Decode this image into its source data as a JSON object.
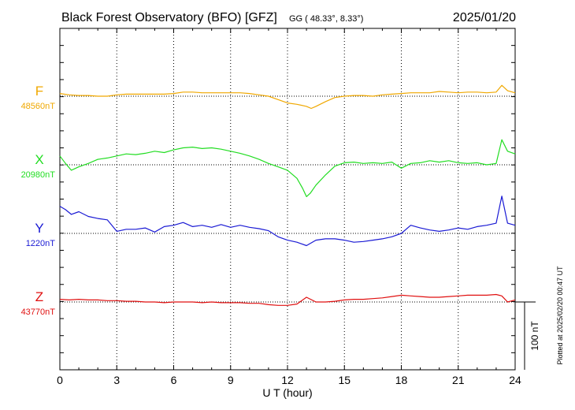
{
  "header": {
    "title": "Black Forest Observatory (BFO)  [GFZ]",
    "coords": "GG ( 48.33°,   8.33°)",
    "date": "2025/01/20"
  },
  "footer": {
    "plotted_at": "Plotted at 2025/02/20 00:47 UT"
  },
  "chart_data": {
    "type": "line",
    "xlabel": "U T (hour)",
    "xlim": [
      0,
      24
    ],
    "x_ticks": [
      "0",
      "3",
      "6",
      "9",
      "12",
      "15",
      "18",
      "21",
      "24"
    ],
    "grid": true,
    "scale_bar": {
      "label": "100 nT",
      "nT": 100
    },
    "series": [
      {
        "name": "F",
        "baseline_label": "48560nT",
        "baseline_nT": 48560,
        "color": "#f0a800",
        "x": [
          0,
          0.5,
          1,
          1.5,
          2,
          2.5,
          3,
          3.5,
          4,
          4.5,
          5,
          5.5,
          6,
          6.5,
          7,
          7.5,
          8,
          8.5,
          9,
          9.5,
          10,
          10.5,
          11,
          11.5,
          12,
          12.5,
          13,
          13.25,
          13.5,
          14,
          14.5,
          15,
          15.5,
          16,
          16.5,
          17,
          17.5,
          18,
          18.5,
          19,
          19.5,
          20,
          20.5,
          21,
          21.5,
          22,
          22.5,
          23,
          23.3,
          23.6,
          24
        ],
        "y": [
          4,
          2,
          1,
          1,
          0,
          0,
          2,
          3,
          3,
          3,
          3,
          3,
          4,
          6,
          6,
          5,
          5,
          5,
          5,
          5,
          4,
          2,
          0,
          -5,
          -10,
          -12,
          -15,
          -18,
          -15,
          -8,
          -2,
          0,
          1,
          1,
          0,
          2,
          3,
          4,
          5,
          5,
          5,
          7,
          6,
          5,
          6,
          6,
          5,
          6,
          16,
          8,
          5
        ]
      },
      {
        "name": "X",
        "baseline_label": "20980nT",
        "baseline_nT": 20980,
        "color": "#22dd22",
        "x": [
          0,
          0.3,
          0.6,
          1,
          1.5,
          2,
          2.5,
          3,
          3.5,
          4,
          4.5,
          5,
          5.5,
          6,
          6.5,
          7,
          7.5,
          8,
          8.5,
          9,
          9.5,
          10,
          10.5,
          11,
          11.5,
          12,
          12.5,
          12.8,
          13,
          13.2,
          13.5,
          14,
          14.5,
          15,
          15.5,
          16,
          16.5,
          17,
          17.5,
          18,
          18.5,
          19,
          19.5,
          20,
          20.5,
          21,
          21.5,
          22,
          22.5,
          23,
          23.3,
          23.6,
          24
        ],
        "y": [
          13,
          2,
          -8,
          -3,
          2,
          8,
          10,
          13,
          16,
          15,
          17,
          20,
          18,
          22,
          25,
          26,
          24,
          25,
          23,
          20,
          17,
          13,
          8,
          2,
          -3,
          -8,
          -20,
          -35,
          -47,
          -42,
          -30,
          -15,
          -2,
          3,
          4,
          2,
          3,
          2,
          4,
          -5,
          2,
          3,
          6,
          4,
          6,
          3,
          2,
          3,
          0,
          2,
          37,
          20,
          16
        ]
      },
      {
        "name": "Y",
        "baseline_label": "1220nT",
        "baseline_nT": 1220,
        "color": "#1a1ad4",
        "x": [
          0,
          0.3,
          0.6,
          1,
          1.5,
          2,
          2.5,
          3,
          3.5,
          4,
          4.5,
          5,
          5.5,
          6,
          6.5,
          7,
          7.5,
          8,
          8.5,
          9,
          9.5,
          10,
          10.5,
          11,
          11.5,
          12,
          12.5,
          13,
          13.5,
          14,
          14.5,
          15,
          15.5,
          16,
          16.5,
          17,
          17.5,
          18,
          18.5,
          19,
          19.5,
          20,
          20.5,
          21,
          21.5,
          22,
          22.5,
          23,
          23.3,
          23.6,
          24
        ],
        "y": [
          40,
          35,
          28,
          32,
          25,
          22,
          20,
          3,
          6,
          6,
          8,
          2,
          10,
          12,
          16,
          10,
          12,
          9,
          13,
          9,
          12,
          9,
          7,
          4,
          -5,
          -10,
          -13,
          -18,
          -10,
          -8,
          -8,
          -10,
          -13,
          -12,
          -10,
          -8,
          -5,
          0,
          12,
          8,
          5,
          3,
          5,
          8,
          6,
          10,
          12,
          15,
          55,
          15,
          12
        ]
      },
      {
        "name": "Z",
        "baseline_label": "43770nT",
        "baseline_nT": 43770,
        "color": "#e01010",
        "x": [
          0,
          0.5,
          1,
          1.5,
          2,
          2.5,
          3,
          3.5,
          4,
          4.5,
          5,
          5.5,
          6,
          6.5,
          7,
          7.5,
          8,
          8.5,
          9,
          9.5,
          10,
          10.5,
          11,
          11.5,
          12,
          12.5,
          13,
          13.5,
          14,
          14.5,
          15,
          15.5,
          16,
          16.5,
          17,
          17.5,
          18,
          18.5,
          19,
          19.5,
          20,
          20.5,
          21,
          21.5,
          22,
          22.5,
          23,
          23.3,
          23.6,
          24
        ],
        "y": [
          4,
          3,
          4,
          3,
          3,
          2,
          2,
          1,
          1,
          0,
          0,
          -1,
          0,
          0,
          0,
          -1,
          0,
          -1,
          -1,
          -1,
          -2,
          -2,
          -4,
          -5,
          -5,
          -3,
          7,
          0,
          0,
          1,
          3,
          4,
          4,
          5,
          6,
          8,
          10,
          9,
          8,
          7,
          7,
          8,
          9,
          10,
          10,
          10,
          11,
          9,
          0,
          3
        ]
      }
    ]
  }
}
